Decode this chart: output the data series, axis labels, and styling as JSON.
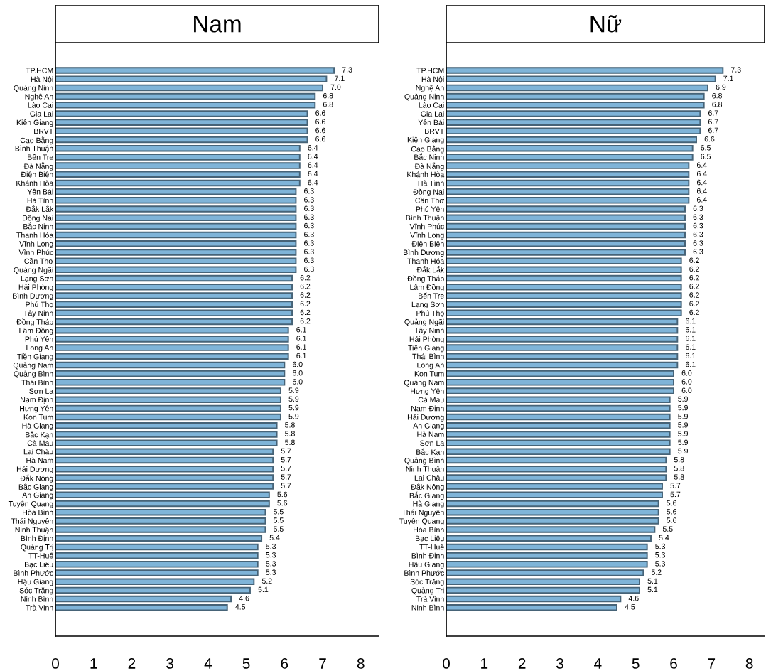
{
  "chart_data": [
    {
      "type": "bar",
      "orientation": "horizontal",
      "title": "Nam",
      "color": "#7fb4d8",
      "value_labels": [
        "7.3",
        "7.1",
        "7.0",
        "6.8",
        "6.8",
        "6.6",
        "6.6",
        "6.6",
        "6.6",
        "6.4",
        "6.4",
        "6.4",
        "6.4",
        "6.4",
        "6.3",
        "6.3",
        "6.3",
        "6.3",
        "6.3",
        "6.3",
        "6.3",
        "6.3",
        "6.3",
        "6.3",
        "6.2",
        "6.2",
        "6.2",
        "6.2",
        "6.2",
        "6.2",
        "6.1",
        "6.1",
        "6.1",
        "6.1",
        "6.0",
        "6.0",
        "6.0",
        "5.9",
        "5.9",
        "5.9",
        "5.9",
        "5.8",
        "5.8",
        "5.8",
        "5.7",
        "5.7",
        "5.7",
        "5.7",
        "5.7",
        "5.6",
        "5.6",
        "5.5",
        "5.5",
        "5.5",
        "5.4",
        "5.3",
        "5.3",
        "5.3",
        "5.3",
        "5.2",
        "5.1",
        "4.6",
        "4.5"
      ],
      "grid": false,
      "xlim": [
        0,
        8.47
      ],
      "xticks": [
        0,
        1,
        2,
        3,
        4,
        5,
        6,
        7,
        8
      ],
      "categories": [
        "TP.HCM",
        "Hà Nội",
        "Quảng Ninh",
        "Nghệ An",
        "Lào Cai",
        "Gia Lai",
        "Kiên Giang",
        "BRVT",
        "Cao Bằng",
        "Bình Thuận",
        "Bến Tre",
        "Đà Nẵng",
        "Điện Biên",
        "Khánh Hòa",
        "Yên Bái",
        "Hà Tĩnh",
        "Đắk Lắk",
        "Đồng Nai",
        "Bắc Ninh",
        "Thanh Hóa",
        "Vĩnh Long",
        "Vĩnh Phúc",
        "Cần Thơ",
        "Quảng Ngãi",
        "Lạng Sơn",
        "Hải Phòng",
        "Bình Dương",
        "Phú Thọ",
        "Tây Ninh",
        "Đồng Tháp",
        "Lâm Đồng",
        "Phú Yên",
        "Long An",
        "Tiền Giang",
        "Quảng Nam",
        "Quảng Bình",
        "Thái Bình",
        "Sơn La",
        "Nam Định",
        "Hưng Yên",
        "Kon Tum",
        "Hà Giang",
        "Bắc Kạn",
        "Cà Mau",
        "Lai Châu",
        "Hà Nam",
        "Hải Dương",
        "Đắk Nông",
        "Bắc Giang",
        "An Giang",
        "Tuyên Quang",
        "Hòa Bình",
        "Thái Nguyên",
        "Ninh Thuận",
        "Bình Định",
        "Quảng Trị",
        "TT-Huế",
        "Bạc Liêu",
        "Bình Phước",
        "Hậu Giang",
        "Sóc Trăng",
        "Ninh Bình",
        "Trà Vinh"
      ],
      "values": [
        7.3,
        7.1,
        7.0,
        6.8,
        6.8,
        6.6,
        6.6,
        6.6,
        6.6,
        6.4,
        6.4,
        6.4,
        6.4,
        6.4,
        6.3,
        6.3,
        6.3,
        6.3,
        6.3,
        6.3,
        6.3,
        6.3,
        6.3,
        6.3,
        6.2,
        6.2,
        6.2,
        6.2,
        6.2,
        6.2,
        6.1,
        6.1,
        6.1,
        6.1,
        6.0,
        6.0,
        6.0,
        5.9,
        5.9,
        5.9,
        5.9,
        5.8,
        5.8,
        5.8,
        5.7,
        5.7,
        5.7,
        5.7,
        5.7,
        5.6,
        5.6,
        5.5,
        5.5,
        5.5,
        5.4,
        5.3,
        5.3,
        5.3,
        5.3,
        5.2,
        5.1,
        4.6,
        4.5
      ]
    },
    {
      "type": "bar",
      "orientation": "horizontal",
      "title": "Nữ",
      "color": "#7fb4d8",
      "value_labels": [
        "7.3",
        "7.1",
        "6.9",
        "6.8",
        "6.8",
        "6.7",
        "6.7",
        "6.7",
        "6.6",
        "6.5",
        "6.5",
        "6.4",
        "6.4",
        "6.4",
        "6.4",
        "6.4",
        "6.3",
        "6.3",
        "6.3",
        "6.3",
        "6.3",
        "6.3",
        "6.2",
        "6.2",
        "6.2",
        "6.2",
        "6.2",
        "6.2",
        "6.2",
        "6.1",
        "6.1",
        "6.1",
        "6.1",
        "6.1",
        "6.1",
        "6.0",
        "6.0",
        "6.0",
        "5.9",
        "5.9",
        "5.9",
        "5.9",
        "5.9",
        "5.9",
        "5.9",
        "5.8",
        "5.8",
        "5.8",
        "5.7",
        "5.7",
        "5.6",
        "5.6",
        "5.6",
        "5.5",
        "5.4",
        "5.3",
        "5.3",
        "5.3",
        "5.2",
        "5.1",
        "5.1",
        "4.6",
        "4.5"
      ],
      "grid": false,
      "xlim": [
        0,
        8.4
      ],
      "xticks": [
        0,
        1,
        2,
        3,
        4,
        5,
        6,
        7,
        8
      ],
      "categories": [
        "TP.HCM",
        "Hà Nội",
        "Nghệ An",
        "Quảng Ninh",
        "Lào Cai",
        "Gia Lai",
        "Yên Bái",
        "BRVT",
        "Kiên Giang",
        "Cao Bằng",
        "Bắc Ninh",
        "Đà Nẵng",
        "Khánh Hòa",
        "Hà Tĩnh",
        "Đồng Nai",
        "Cần Thơ",
        "Phú Yên",
        "Bình Thuận",
        "Vĩnh Phúc",
        "Vĩnh Long",
        "Điện Biên",
        "Bình Dương",
        "Thanh Hóa",
        "Đắk Lắk",
        "Đồng Tháp",
        "Lâm Đồng",
        "Bến Tre",
        "Lạng Sơn",
        "Phú Thọ",
        "Quảng Ngãi",
        "Tây Ninh",
        "Hải Phòng",
        "Tiền Giang",
        "Thái Bình",
        "Long An",
        "Kon Tum",
        "Quảng Nam",
        "Hưng Yên",
        "Cà Mau",
        "Nam Định",
        "Hải Dương",
        "An Giang",
        "Hà Nam",
        "Sơn La",
        "Bắc Kạn",
        "Quảng Bình",
        "Ninh Thuận",
        "Lai Châu",
        "Đắk Nông",
        "Bắc Giang",
        "Hà Giang",
        "Thái Nguyên",
        "Tuyên Quang",
        "Hòa Bình",
        "Bạc Liêu",
        "TT-Huế",
        "Bình Định",
        "Hậu Giang",
        "Bình Phước",
        "Sóc Trăng",
        "Quảng Trị",
        "Trà Vinh",
        "Ninh Bình"
      ],
      "values": [
        7.3,
        7.1,
        6.9,
        6.8,
        6.8,
        6.7,
        6.7,
        6.7,
        6.6,
        6.5,
        6.5,
        6.4,
        6.4,
        6.4,
        6.4,
        6.4,
        6.3,
        6.3,
        6.3,
        6.3,
        6.3,
        6.3,
        6.2,
        6.2,
        6.2,
        6.2,
        6.2,
        6.2,
        6.2,
        6.1,
        6.1,
        6.1,
        6.1,
        6.1,
        6.1,
        6.0,
        6.0,
        6.0,
        5.9,
        5.9,
        5.9,
        5.9,
        5.9,
        5.9,
        5.9,
        5.8,
        5.8,
        5.8,
        5.7,
        5.7,
        5.6,
        5.6,
        5.6,
        5.5,
        5.4,
        5.3,
        5.3,
        5.3,
        5.2,
        5.1,
        5.1,
        4.6,
        4.5
      ]
    }
  ]
}
